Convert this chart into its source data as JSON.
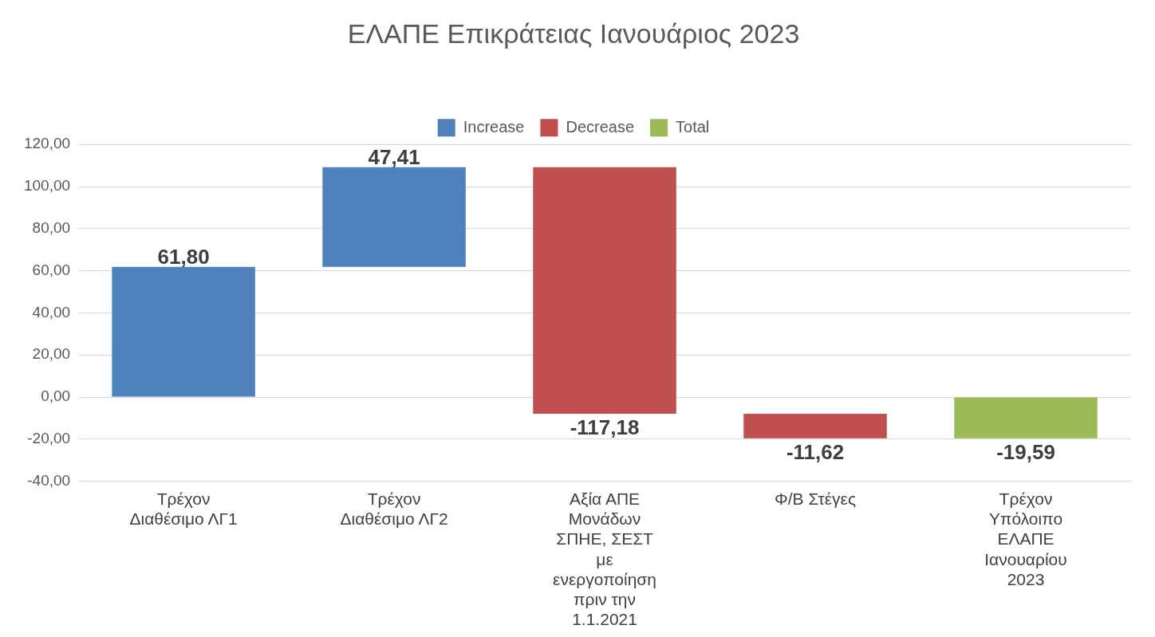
{
  "chart_data": {
    "type": "bar",
    "title": "ΕΛΑΠΕ Επικράτειας Ιανουάριος 2023",
    "categories": [
      "Τρέχον Διαθέσιμο ΛΓ1",
      "Τρέχον Διαθέσιμο ΛΓ2",
      "Αξία ΑΠΕ Μονάδων ΣΠΗΕ, ΣΕΣΤ με ενεργοποίηση πριν την 1.1.2021",
      "Φ/Β Στέγες",
      "Τρέχον Υπόλοιπο ΕΛΑΠΕ Ιανουαρίου 2023"
    ],
    "series": [
      {
        "name": "Increase",
        "color": "#4f81bd",
        "values": [
          61.8,
          47.41,
          null,
          null,
          null
        ],
        "base": [
          0,
          61.8,
          null,
          null,
          null
        ],
        "value_labels": [
          "61,80",
          "47,41",
          null,
          null,
          null
        ]
      },
      {
        "name": "Decrease",
        "color": "#c0504d",
        "values": [
          null,
          null,
          -117.18,
          -11.62,
          null
        ],
        "base": [
          null,
          null,
          109.21,
          -7.97,
          null
        ],
        "value_labels": [
          null,
          null,
          "-117,18",
          "-11,62",
          null
        ]
      },
      {
        "name": "Total",
        "color": "#9bbb59",
        "values": [
          null,
          null,
          null,
          null,
          -19.59
        ],
        "base": [
          null,
          null,
          null,
          null,
          0
        ],
        "value_labels": [
          null,
          null,
          null,
          null,
          "-19,59"
        ]
      }
    ],
    "ylim": [
      -40,
      120
    ],
    "yticks": [
      {
        "value": -40,
        "label": "-40,00"
      },
      {
        "value": -20,
        "label": "-20,00"
      },
      {
        "value": 0,
        "label": "0,00"
      },
      {
        "value": 20,
        "label": "20,00"
      },
      {
        "value": 40,
        "label": "40,00"
      },
      {
        "value": 60,
        "label": "60,00"
      },
      {
        "value": 80,
        "label": "80,00"
      },
      {
        "value": 100,
        "label": "100,00"
      },
      {
        "value": 120,
        "label": "120,00"
      }
    ],
    "grid": "y",
    "legend": "top"
  }
}
